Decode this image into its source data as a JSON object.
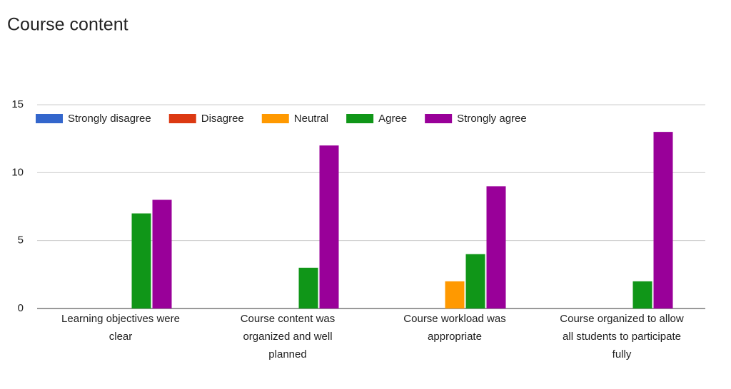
{
  "chart_data": {
    "type": "bar",
    "title": "Course content",
    "categories": [
      "Learning objectives were clear",
      "Course content was organized and well planned",
      "Course workload was appropriate",
      "Course organized to allow all students to participate fully"
    ],
    "series": [
      {
        "name": "Strongly disagree",
        "color": "#3366cc",
        "values": [
          0,
          0,
          0,
          0
        ]
      },
      {
        "name": "Disagree",
        "color": "#dc3912",
        "values": [
          0,
          0,
          0,
          0
        ]
      },
      {
        "name": "Neutral",
        "color": "#ff9900",
        "values": [
          0,
          0,
          2,
          0
        ]
      },
      {
        "name": "Agree",
        "color": "#109618",
        "values": [
          7,
          3,
          4,
          2
        ]
      },
      {
        "name": "Strongly agree",
        "color": "#990099",
        "values": [
          8,
          12,
          9,
          13
        ]
      }
    ],
    "ylim": [
      0,
      15
    ],
    "yticks": [
      0,
      5,
      10,
      15
    ],
    "grid": true,
    "legend": "top"
  }
}
